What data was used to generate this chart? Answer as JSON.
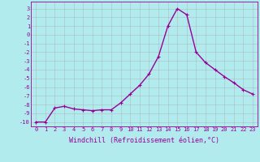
{
  "xlabel": "Windchill (Refroidissement éolien,°C)",
  "x": [
    0,
    1,
    2,
    3,
    4,
    5,
    6,
    7,
    8,
    9,
    10,
    11,
    12,
    13,
    14,
    15,
    16,
    17,
    18,
    19,
    20,
    21,
    22,
    23
  ],
  "y": [
    -10.0,
    -10.0,
    -8.4,
    -8.2,
    -8.5,
    -8.6,
    -8.7,
    -8.6,
    -8.6,
    -7.8,
    -6.8,
    -5.8,
    -4.5,
    -2.5,
    1.0,
    3.0,
    2.3,
    -2.0,
    -3.2,
    -4.0,
    -4.8,
    -5.5,
    -6.3,
    -6.8
  ],
  "line_color": "#990099",
  "marker": "+",
  "markersize": 3,
  "linewidth": 1.0,
  "bg_color": "#b2ebee",
  "grid_color": "#aaaaaa",
  "ylim": [
    -10.5,
    3.8
  ],
  "xlim": [
    -0.5,
    23.5
  ],
  "yticks": [
    3,
    2,
    1,
    0,
    -1,
    -2,
    -3,
    -4,
    -5,
    -6,
    -7,
    -8,
    -9,
    -10
  ],
  "xtick_labels": [
    "0",
    "1",
    "2",
    "3",
    "4",
    "5",
    "6",
    "7",
    "8",
    "9",
    "10",
    "11",
    "12",
    "13",
    "14",
    "15",
    "16",
    "17",
    "18",
    "19",
    "20",
    "21",
    "22",
    "23"
  ],
  "tick_color": "#990099",
  "label_fontsize": 6.0,
  "tick_fontsize": 5.0
}
